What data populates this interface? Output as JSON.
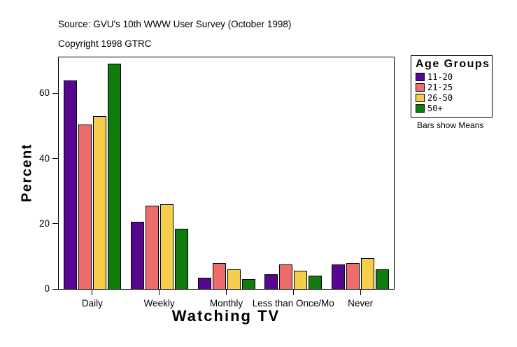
{
  "page": {
    "source_line": "Source: GVU's 10th WWW User Survey (October 1998)",
    "copyright_line": "Copyright 1998 GTRC"
  },
  "chart_data": {
    "type": "bar",
    "title": "Watching TV",
    "xlabel": "Watching TV",
    "ylabel": "Percent",
    "categories": [
      "Daily",
      "Weekly",
      "Monthly",
      "Less than Once/Mo",
      "Never"
    ],
    "series": [
      {
        "name": "11-20",
        "color": "#56068F",
        "values": [
          64,
          20.5,
          3.5,
          4.5,
          7.5
        ]
      },
      {
        "name": "21-25",
        "color": "#EF6C6C",
        "values": [
          50.5,
          25.5,
          8,
          7.5,
          8
        ]
      },
      {
        "name": "26-50",
        "color": "#F6CE4C",
        "values": [
          53,
          26,
          6,
          5.5,
          9.5
        ]
      },
      {
        "name": "50+",
        "color": "#117C0D",
        "values": [
          69,
          18.5,
          3,
          4,
          6
        ]
      }
    ],
    "ylim": [
      0,
      71
    ],
    "yticks": [
      0,
      20,
      40,
      60
    ],
    "grid": false,
    "legend": {
      "title": "Age Groups",
      "position": "right",
      "note": "Bars show Means"
    }
  }
}
